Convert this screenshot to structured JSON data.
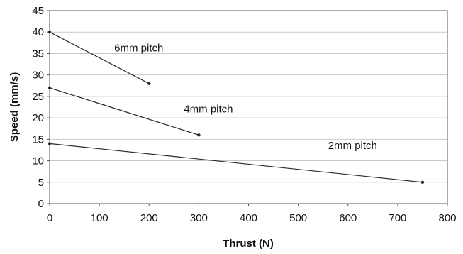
{
  "chart_data": {
    "type": "line",
    "title": "",
    "xlabel": "Thrust (N)",
    "ylabel": "Speed (mm/s)",
    "xlim": [
      0,
      800
    ],
    "ylim": [
      0,
      45
    ],
    "x_ticks": [
      0,
      100,
      200,
      300,
      400,
      500,
      600,
      700,
      800
    ],
    "y_ticks": [
      0,
      5,
      10,
      15,
      20,
      25,
      30,
      35,
      40,
      45
    ],
    "grid": true,
    "legend": "none",
    "colors": {
      "line": "#2a2a2a",
      "grid": "#c9c9c9",
      "axis": "#555555"
    },
    "series": [
      {
        "name": "6mm pitch",
        "points": [
          [
            0,
            40
          ],
          [
            200,
            28
          ]
        ],
        "label_at": [
          130,
          35.5
        ]
      },
      {
        "name": "4mm pitch",
        "points": [
          [
            0,
            27
          ],
          [
            300,
            16
          ]
        ],
        "label_at": [
          270,
          21.3
        ]
      },
      {
        "name": "2mm pitch",
        "points": [
          [
            0,
            14
          ],
          [
            750,
            5
          ]
        ],
        "label_at": [
          560,
          12.7
        ]
      }
    ]
  }
}
